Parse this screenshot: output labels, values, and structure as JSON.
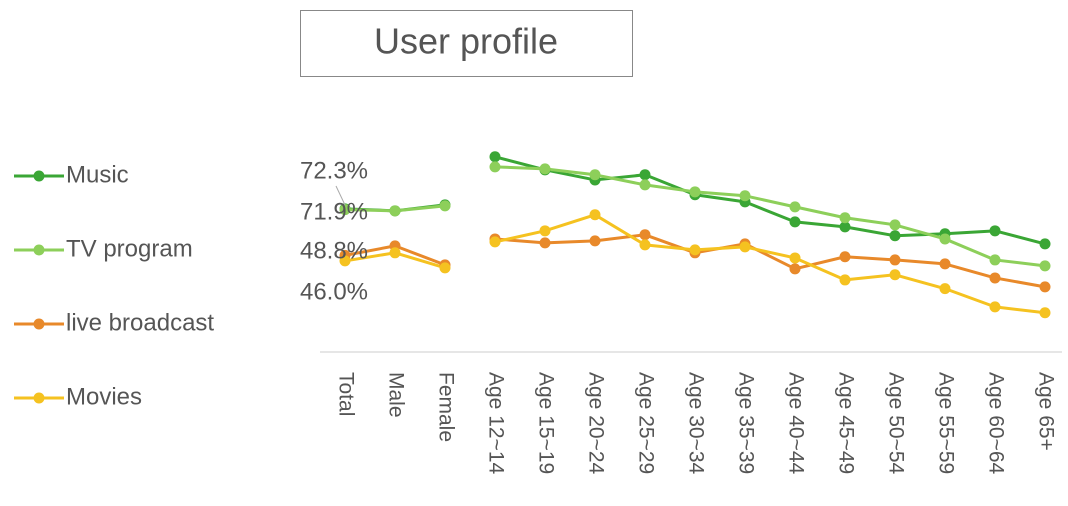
{
  "chart_data": {
    "type": "line",
    "title": "User profile",
    "categories": [
      "Total",
      "Male",
      "Female",
      "Age 12~14",
      "Age 15~19",
      "Age 20~24",
      "Age 25~29",
      "Age 30~34",
      "Age 35~39",
      "Age 40~44",
      "Age 45~49",
      "Age 50~54",
      "Age 55~59",
      "Age 60~64",
      "Age 65+"
    ],
    "ylim": [
      0,
      100
    ],
    "legend": "left",
    "series": [
      {
        "name": "Music",
        "color": "#3aa635",
        "values": [
          72.3,
          71.3,
          74.3,
          98.6,
          92,
          86.9,
          89.5,
          79.4,
          75.8,
          65.7,
          63.2,
          58.7,
          59.7,
          61.2,
          54.6
        ],
        "value_labels": [
          "72.3%",
          null,
          null,
          null,
          null,
          null,
          null,
          null,
          null,
          null,
          null,
          null,
          null,
          null,
          null
        ]
      },
      {
        "name": "TV program",
        "color": "#8dcf5a",
        "values": [
          71.9,
          71.3,
          73.8,
          93.5,
          92.5,
          89.5,
          84.4,
          80.9,
          78.9,
          73.3,
          67.8,
          64.2,
          57.1,
          46.5,
          43.5
        ],
        "value_labels": [
          "71.9%",
          null,
          null,
          null,
          null,
          null,
          null,
          null,
          null,
          null,
          null,
          null,
          null,
          null,
          null
        ]
      },
      {
        "name": "live broadcast",
        "color": "#e8892a",
        "values": [
          48.8,
          53.6,
          44,
          57.1,
          55.1,
          56.1,
          59.2,
          50.1,
          54.6,
          42,
          48.1,
          46.5,
          44.5,
          37.4,
          32.9
        ],
        "value_labels": [
          "48.8%",
          null,
          null,
          null,
          null,
          null,
          null,
          null,
          null,
          null,
          null,
          null,
          null,
          null,
          null
        ]
      },
      {
        "name": "Movies",
        "color": "#f5c220",
        "values": [
          46.0,
          50.1,
          42.5,
          55.6,
          61.2,
          69.3,
          54.1,
          51.6,
          53.1,
          47.5,
          36.4,
          39,
          32,
          22.8,
          19.8
        ],
        "value_labels": [
          "46.0%",
          null,
          null,
          null,
          null,
          null,
          null,
          null,
          null,
          null,
          null,
          null,
          null,
          null,
          null
        ]
      }
    ]
  }
}
